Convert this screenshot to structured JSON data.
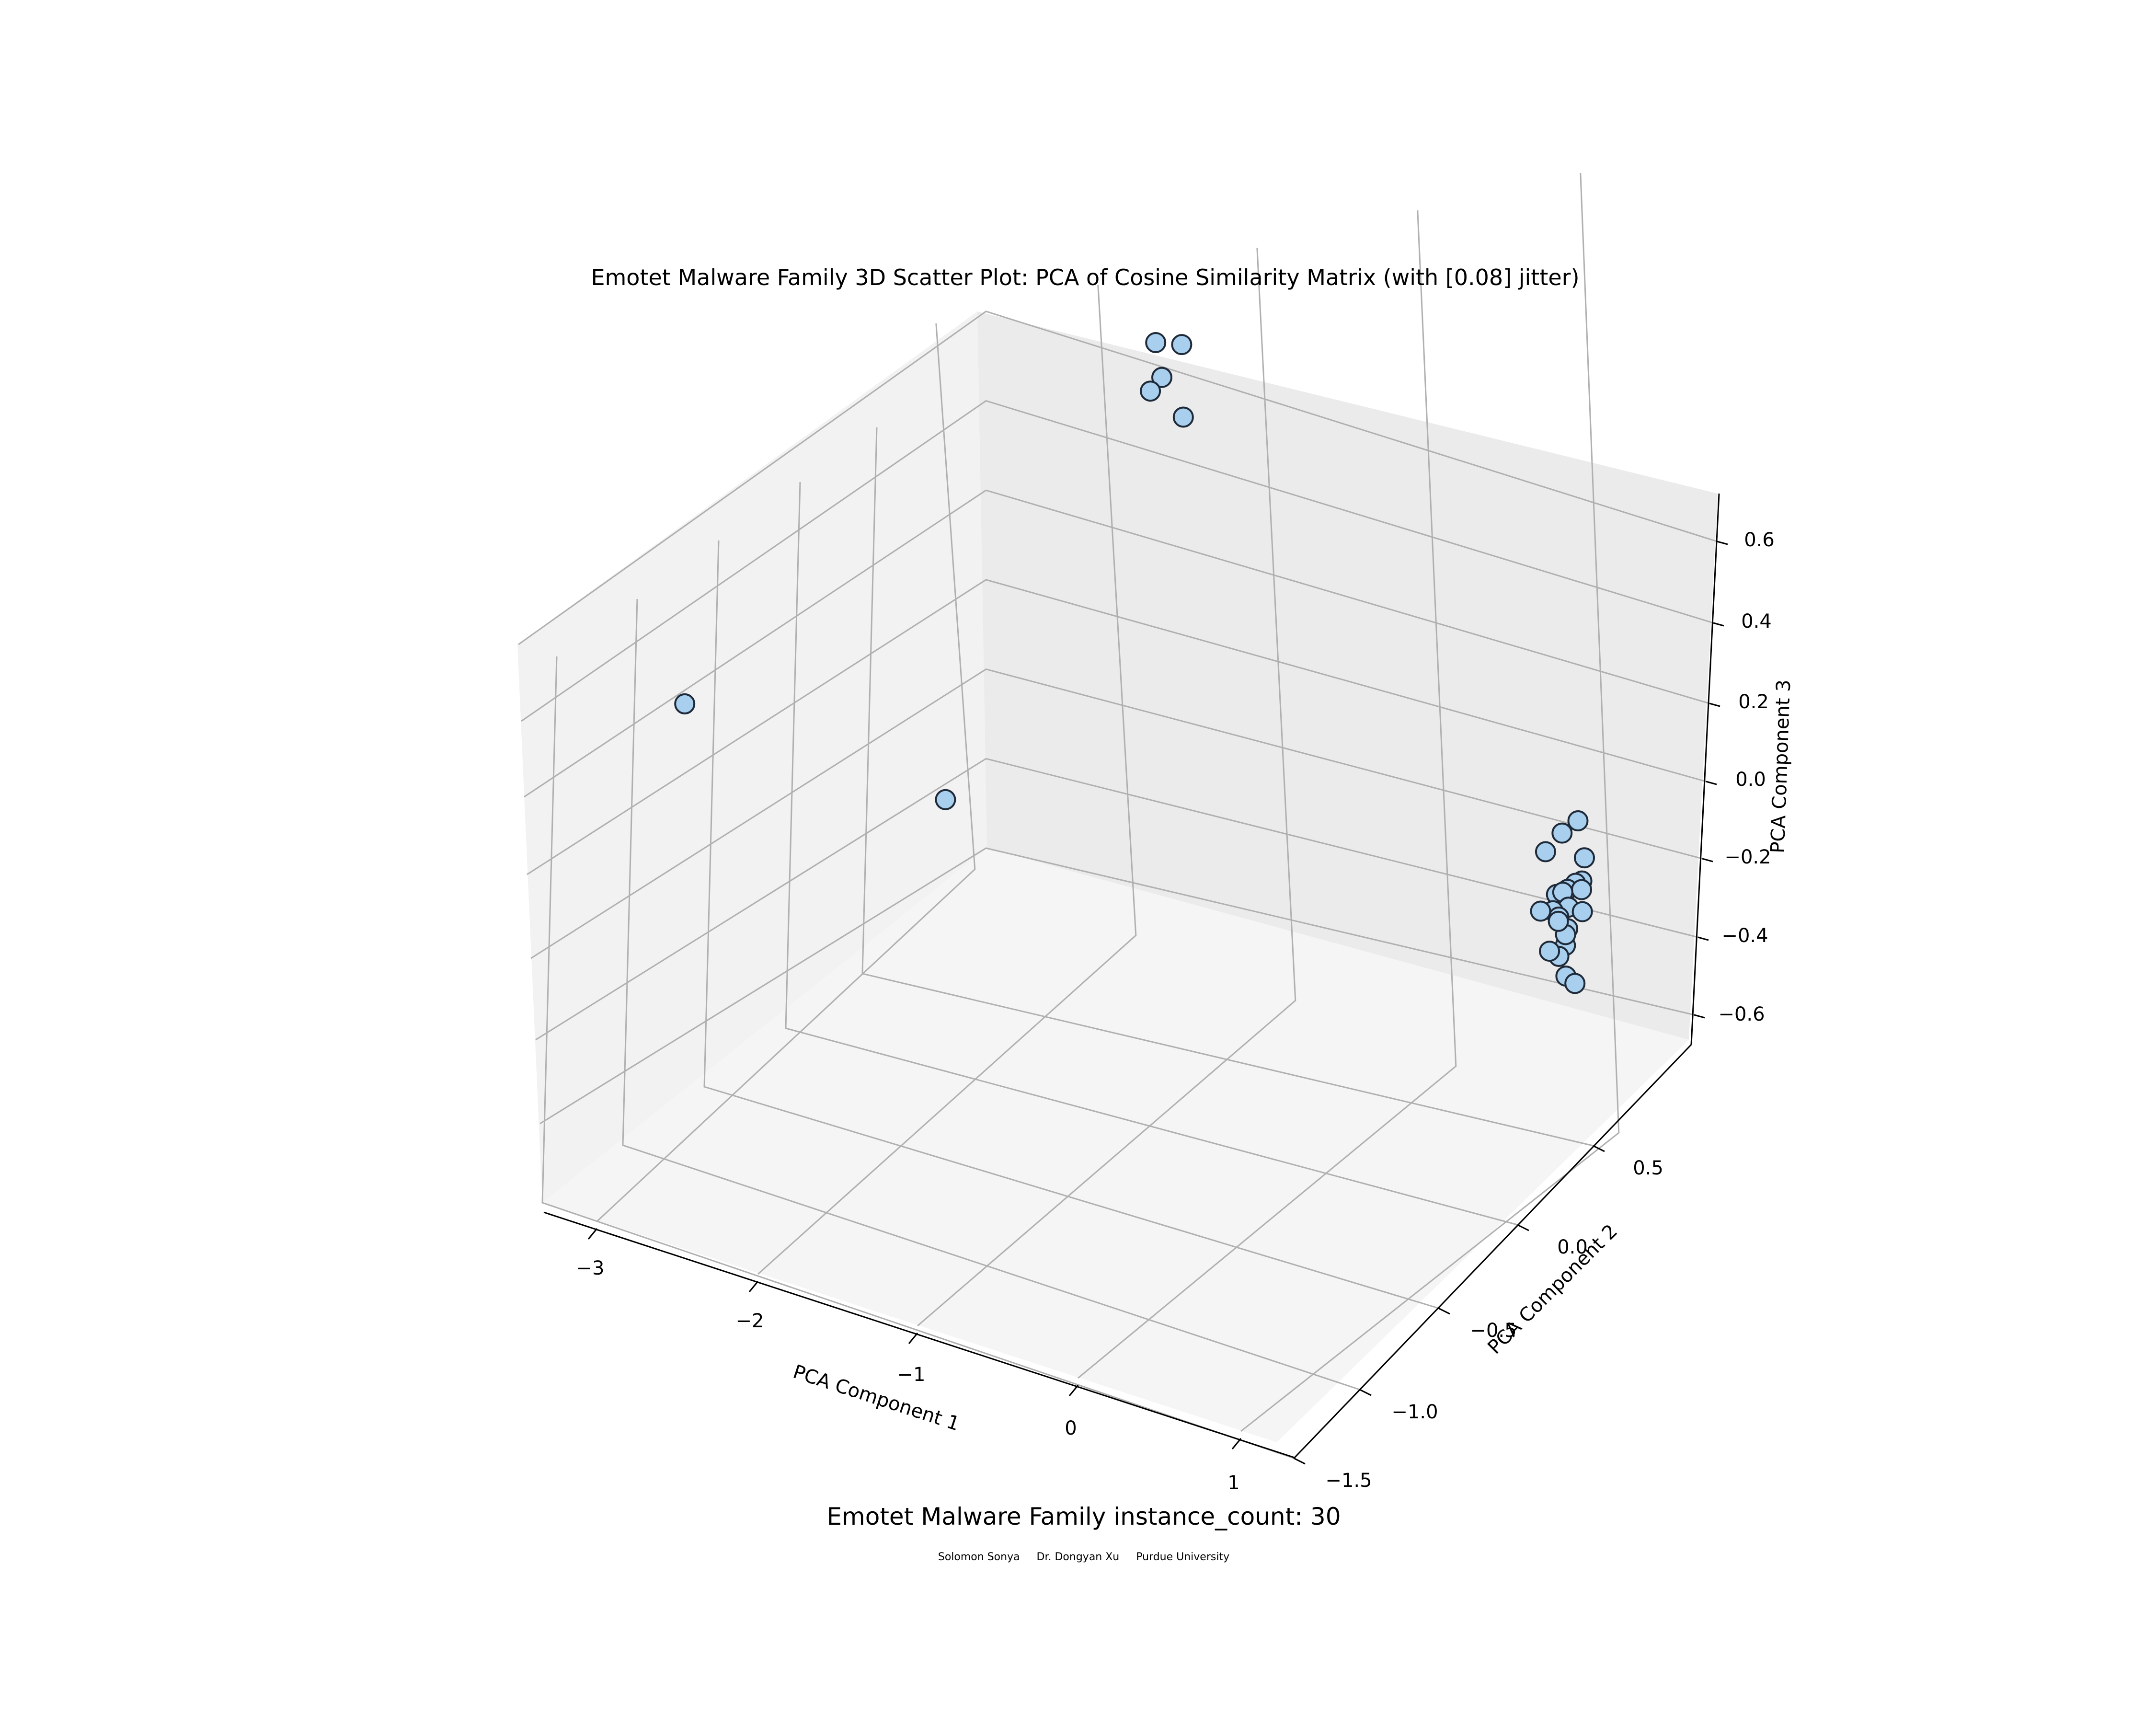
{
  "chart_data": {
    "type": "scatter",
    "projection": "3d",
    "title": "Emotet Malware Family 3D Scatter Plot: PCA of Cosine Similarity Matrix (with [0.08] jitter)",
    "xlabel": "PCA Component 1",
    "ylabel": "PCA Component 2",
    "zlabel": "PCA Component 3",
    "x_ticks": [
      "−3",
      "−2",
      "−1",
      "0",
      "1"
    ],
    "y_ticks": [
      "−1.5",
      "−1.0",
      "−0.5",
      "0.0",
      "0.5"
    ],
    "z_ticks": [
      "−0.6",
      "−0.4",
      "−0.2",
      "0.0",
      "0.2",
      "0.4",
      "0.6"
    ],
    "grid": true,
    "marker_color": "#a9cfee",
    "marker_edge_color": "#1e2a38",
    "points": [
      {
        "x": -2.9,
        "y": -1.5,
        "z": 0.5
      },
      {
        "x": -3.4,
        "y": 0.6,
        "z": -0.58
      },
      {
        "x": -2.3,
        "y": 0.75,
        "z": 0.55
      },
      {
        "x": -2.1,
        "y": 0.72,
        "z": 0.58
      },
      {
        "x": -2.2,
        "y": 0.7,
        "z": 0.5
      },
      {
        "x": -2.25,
        "y": 0.68,
        "z": 0.47
      },
      {
        "x": -2.0,
        "y": 0.65,
        "z": 0.45
      },
      {
        "x": 0.85,
        "y": 0.45,
        "z": -0.08
      },
      {
        "x": 0.75,
        "y": 0.45,
        "z": -0.12
      },
      {
        "x": 0.7,
        "y": 0.4,
        "z": -0.15
      },
      {
        "x": 0.9,
        "y": 0.45,
        "z": -0.16
      },
      {
        "x": 0.92,
        "y": 0.42,
        "z": -0.2
      },
      {
        "x": 0.88,
        "y": 0.42,
        "z": -0.21
      },
      {
        "x": 0.85,
        "y": 0.4,
        "z": -0.22
      },
      {
        "x": 0.92,
        "y": 0.42,
        "z": -0.22
      },
      {
        "x": 0.78,
        "y": 0.4,
        "z": -0.24
      },
      {
        "x": 0.82,
        "y": 0.4,
        "z": -0.23
      },
      {
        "x": 0.86,
        "y": 0.4,
        "z": -0.26
      },
      {
        "x": 0.93,
        "y": 0.42,
        "z": -0.27
      },
      {
        "x": 0.74,
        "y": 0.42,
        "z": -0.29
      },
      {
        "x": 0.8,
        "y": 0.4,
        "z": -0.29
      },
      {
        "x": 0.86,
        "y": 0.4,
        "z": -0.31
      },
      {
        "x": 0.66,
        "y": 0.42,
        "z": -0.3
      },
      {
        "x": 0.87,
        "y": 0.38,
        "z": -0.34
      },
      {
        "x": 0.83,
        "y": 0.38,
        "z": -0.37
      },
      {
        "x": 0.88,
        "y": 0.38,
        "z": -0.41
      },
      {
        "x": 0.94,
        "y": 0.38,
        "z": -0.42
      },
      {
        "x": 0.8,
        "y": 0.35,
        "z": -0.35
      },
      {
        "x": 0.9,
        "y": 0.35,
        "z": -0.3
      },
      {
        "x": 0.84,
        "y": 0.36,
        "z": -0.28
      }
    ]
  },
  "caption": "Emotet Malware Family instance_count: 30",
  "credits": "Solomon Sonya     Dr. Dongyan Xu     Purdue University"
}
